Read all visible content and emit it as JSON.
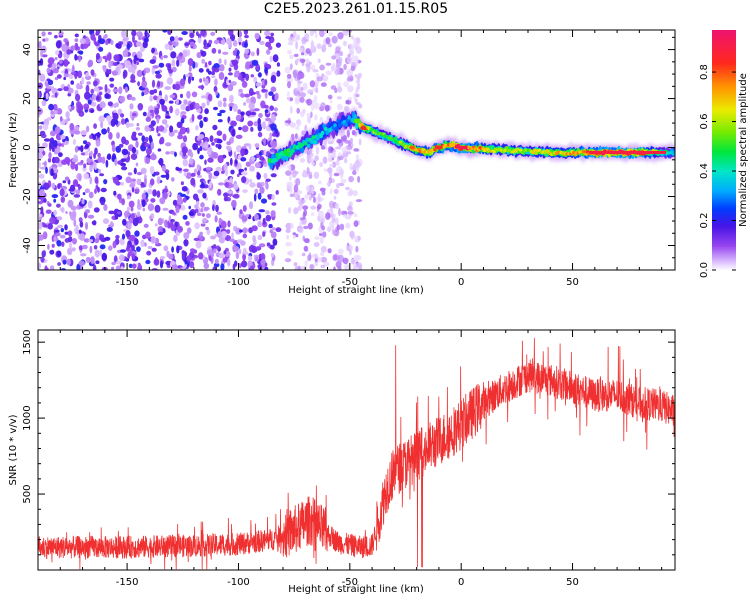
{
  "title": "C2E5.2023.261.01.15.R05",
  "chart_data": [
    {
      "type": "heatmap",
      "xlabel": "Height of straight line (km)",
      "ylabel": "Frequency (Hz)",
      "xlim": [
        -190,
        96
      ],
      "ylim": [
        -50,
        48
      ],
      "xticks": [
        -150,
        -100,
        -50,
        0,
        50
      ],
      "yticks": [
        -40,
        -20,
        0,
        20,
        40
      ],
      "colorbar": {
        "label": "Normalized spectral amplitude",
        "range": [
          0.0,
          0.97
        ],
        "ticks": [
          0.0,
          0.2,
          0.4,
          0.6,
          0.8
        ]
      },
      "noise_regions_x": [
        [
          -190,
          -82
        ],
        [
          -78,
          -45
        ]
      ],
      "ridge": [
        {
          "x": -84,
          "y": -5,
          "amp": 0.45
        },
        {
          "x": -78,
          "y": -2,
          "amp": 0.45
        },
        {
          "x": -72,
          "y": 1,
          "amp": 0.4
        },
        {
          "x": -66,
          "y": 4,
          "amp": 0.4
        },
        {
          "x": -60,
          "y": 7,
          "amp": 0.35
        },
        {
          "x": -54,
          "y": 10,
          "amp": 0.3
        },
        {
          "x": -49,
          "y": 12,
          "amp": 0.3
        },
        {
          "x": -44,
          "y": 8,
          "amp": 0.85
        },
        {
          "x": -40,
          "y": 7,
          "amp": 0.55
        },
        {
          "x": -35,
          "y": 5,
          "amp": 0.5
        },
        {
          "x": -30,
          "y": 3,
          "amp": 0.5
        },
        {
          "x": -25,
          "y": 1,
          "amp": 0.6
        },
        {
          "x": -20,
          "y": -1,
          "amp": 0.7
        },
        {
          "x": -15,
          "y": -2,
          "amp": 0.75
        },
        {
          "x": -10,
          "y": 0,
          "amp": 0.8
        },
        {
          "x": -5,
          "y": 1,
          "amp": 0.75
        },
        {
          "x": 0,
          "y": 0,
          "amp": 0.9
        },
        {
          "x": 10,
          "y": -0.5,
          "amp": 0.7
        },
        {
          "x": 20,
          "y": -1,
          "amp": 0.6
        },
        {
          "x": 30,
          "y": -1.5,
          "amp": 0.6
        },
        {
          "x": 40,
          "y": -2,
          "amp": 0.65
        },
        {
          "x": 50,
          "y": -2,
          "amp": 0.7
        },
        {
          "x": 60,
          "y": -2,
          "amp": 0.85
        },
        {
          "x": 70,
          "y": -2,
          "amp": 0.9
        },
        {
          "x": 80,
          "y": -2,
          "amp": 0.85
        },
        {
          "x": 90,
          "y": -2,
          "amp": 0.45
        },
        {
          "x": 96,
          "y": -2,
          "amp": 0.4
        }
      ]
    },
    {
      "type": "line",
      "xlabel": "Height of straight line (km)",
      "ylabel": "SNR (10 * v/v)",
      "xlim": [
        -190,
        96
      ],
      "ylim": [
        0,
        1580
      ],
      "xticks": [
        -150,
        -100,
        -50,
        0,
        50
      ],
      "yticks": [
        500,
        1000,
        1500
      ],
      "color": "#f03030",
      "series": [
        {
          "x": [
            -190,
            -150,
            -120,
            -100,
            -85,
            -75,
            -68,
            -62,
            -55,
            -45,
            -40,
            -36,
            -33,
            -30,
            -25,
            -15,
            -5,
            0,
            10,
            20,
            30,
            40,
            50,
            60,
            70,
            80,
            90,
            96
          ],
          "y": [
            150,
            150,
            160,
            170,
            200,
            260,
            330,
            260,
            180,
            150,
            160,
            400,
            560,
            650,
            700,
            800,
            900,
            960,
            1100,
            1200,
            1280,
            1250,
            1200,
            1150,
            1150,
            1100,
            1080,
            1040
          ]
        }
      ]
    }
  ]
}
